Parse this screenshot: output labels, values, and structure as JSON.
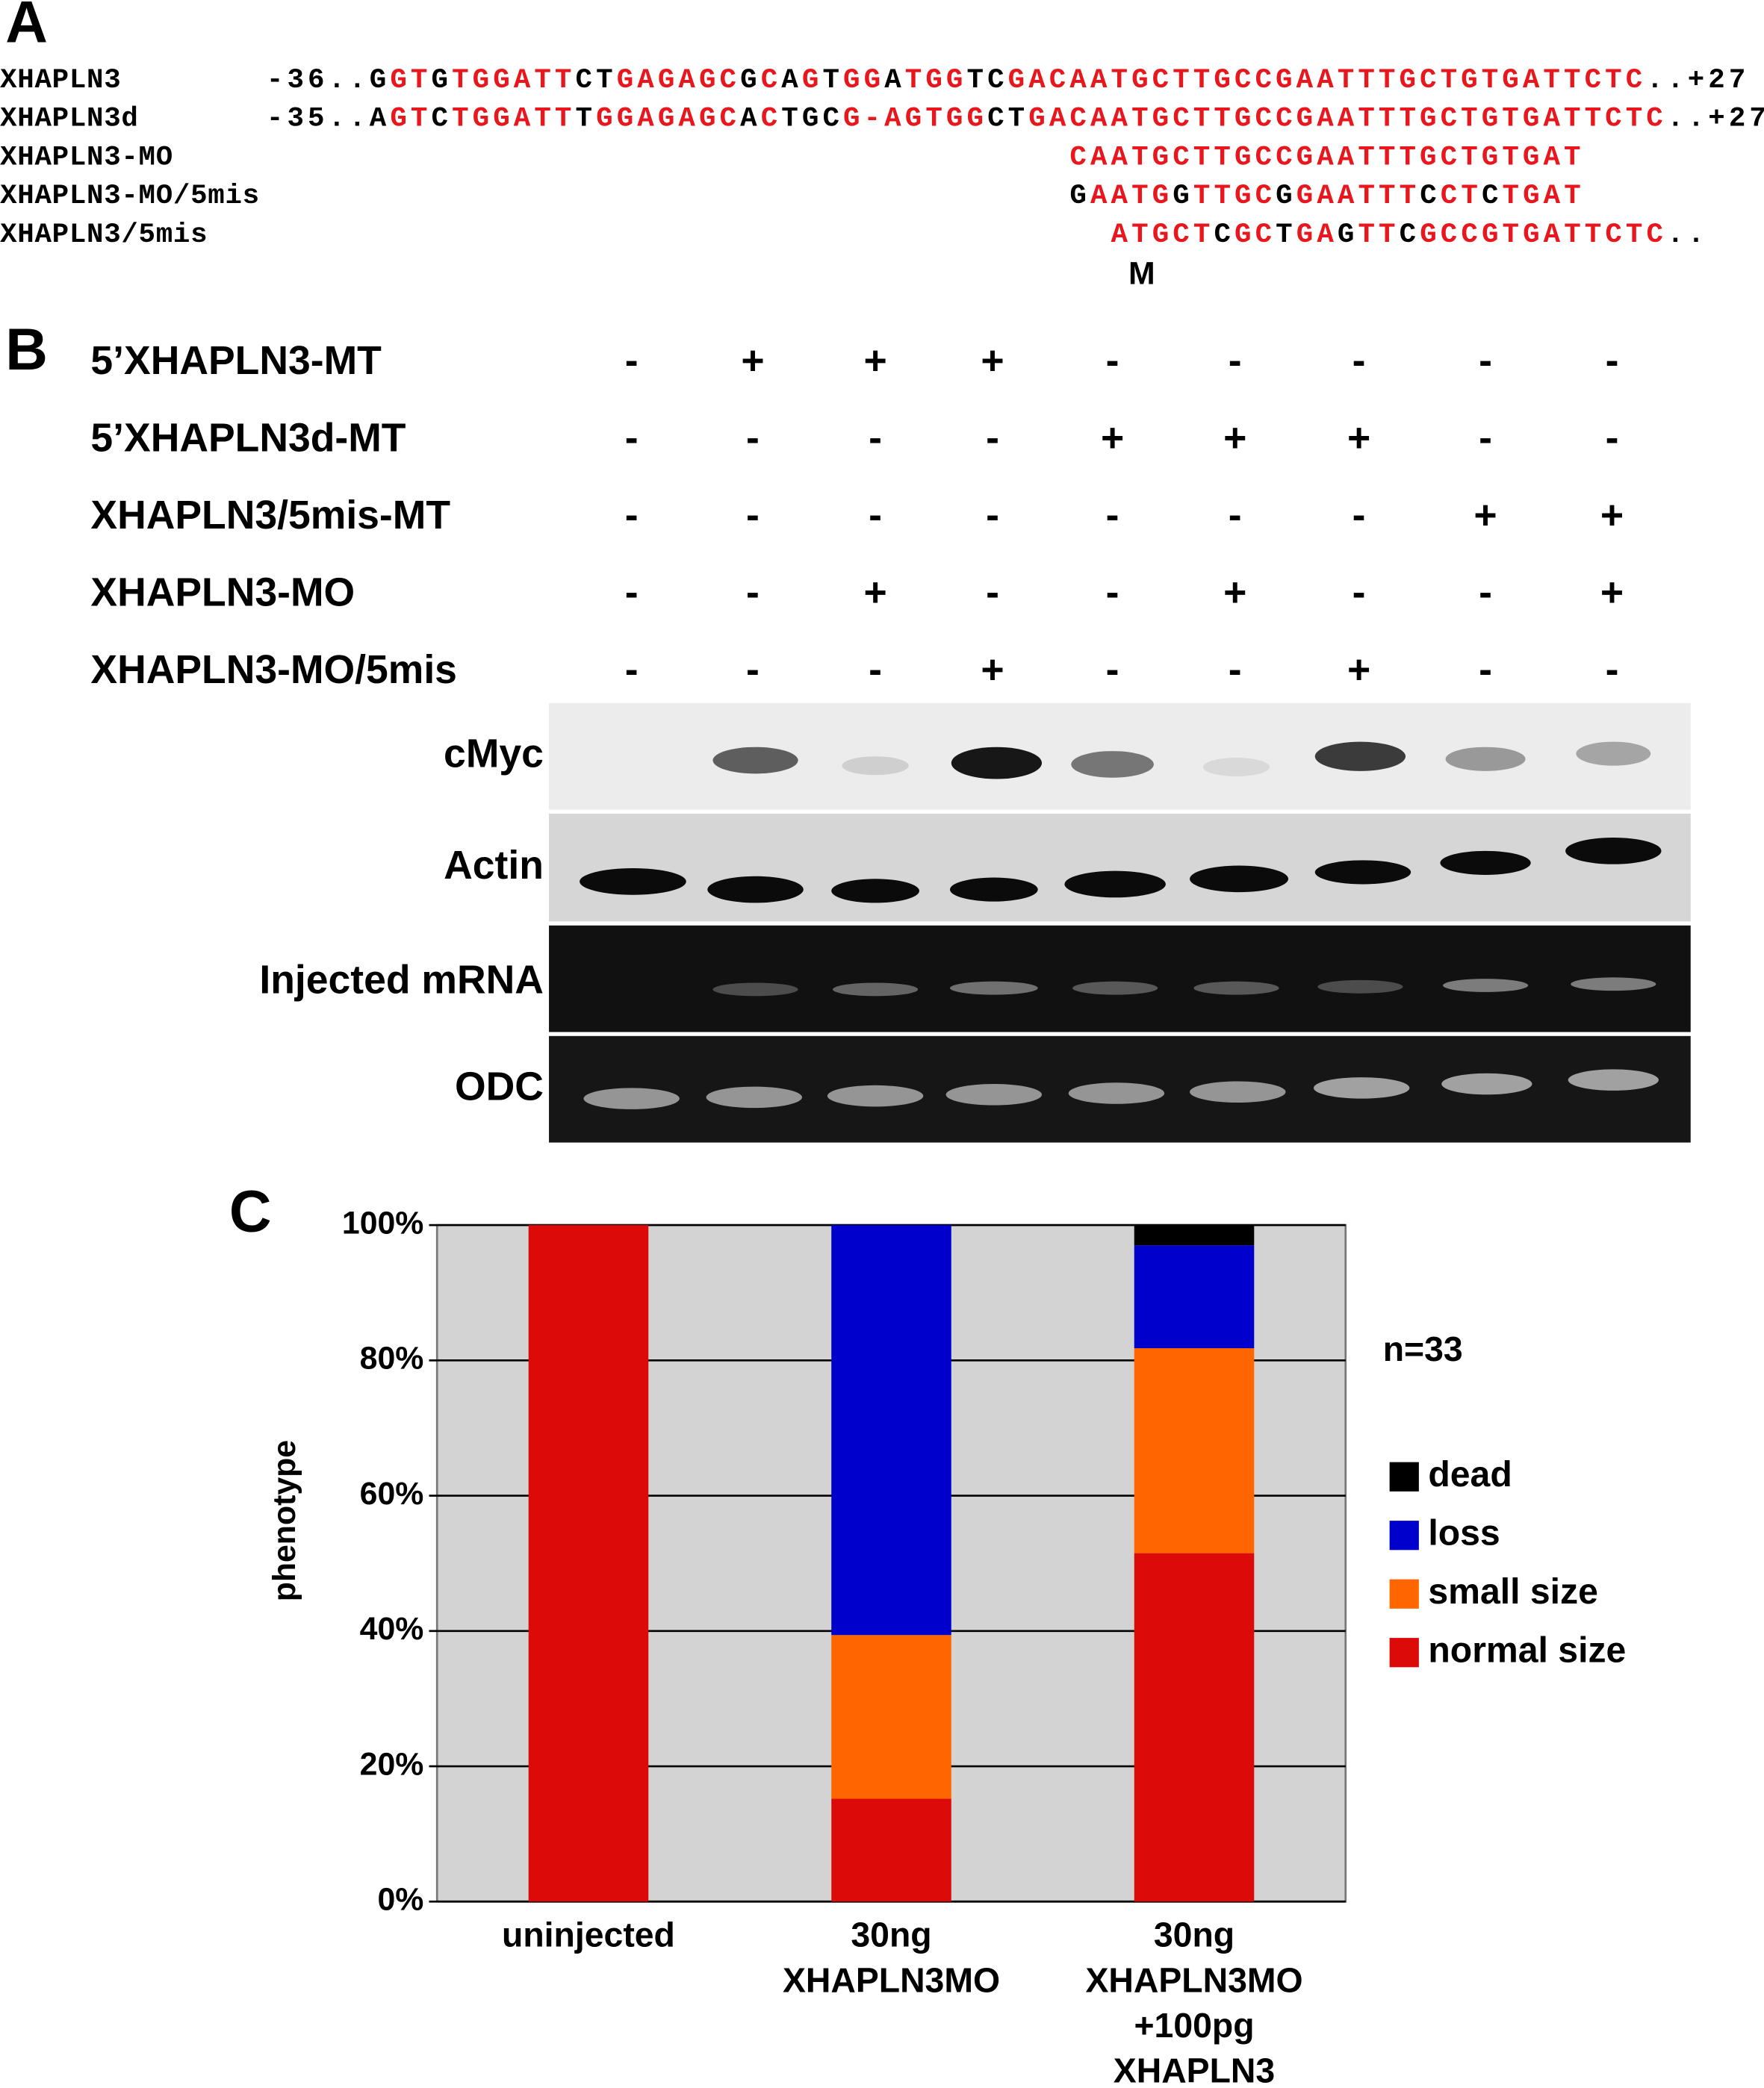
{
  "panel_a": {
    "label": "A",
    "rows": [
      {
        "name": "XHAPLN3",
        "runs": [
          {
            "text": "-36..G",
            "color": "#000000"
          },
          {
            "text": "GT",
            "color": "#e8161d"
          },
          {
            "text": "G",
            "color": "#000000"
          },
          {
            "text": "TGGATT",
            "color": "#e8161d"
          },
          {
            "text": "CT",
            "color": "#000000"
          },
          {
            "text": "GAGAGC",
            "color": "#e8161d"
          },
          {
            "text": "G",
            "color": "#000000"
          },
          {
            "text": "C",
            "color": "#e8161d"
          },
          {
            "text": "A",
            "color": "#000000"
          },
          {
            "text": "G",
            "color": "#e8161d"
          },
          {
            "text": "T",
            "color": "#000000"
          },
          {
            "text": "GG",
            "color": "#e8161d"
          },
          {
            "text": "A",
            "color": "#000000"
          },
          {
            "text": "TGG",
            "color": "#e8161d"
          },
          {
            "text": "TC",
            "color": "#000000"
          },
          {
            "text": "GACAATGCTTGCCGAATTTGCTGTGATTCTC",
            "color": "#e8161d"
          },
          {
            "text": "..+27",
            "color": "#000000"
          }
        ]
      },
      {
        "name": "XHAPLN3d",
        "runs": [
          {
            "text": "-35..A",
            "color": "#000000"
          },
          {
            "text": "GT",
            "color": "#e8161d"
          },
          {
            "text": "C",
            "color": "#000000"
          },
          {
            "text": "TGGATT",
            "color": "#e8161d"
          },
          {
            "text": "T",
            "color": "#000000"
          },
          {
            "text": "GGAGAGC",
            "color": "#e8161d"
          },
          {
            "text": "A",
            "color": "#000000"
          },
          {
            "text": "C",
            "color": "#e8161d"
          },
          {
            "text": "TGC",
            "color": "#000000"
          },
          {
            "text": "G-AGTGG",
            "color": "#e8161d"
          },
          {
            "text": "CT",
            "color": "#000000"
          },
          {
            "text": "GACAATGCTTGCCGAATTTGCTGTGATTCTC",
            "color": "#e8161d"
          },
          {
            "text": "..+27",
            "color": "#000000"
          }
        ]
      },
      {
        "name": "XHAPLN3-MO",
        "runs": [
          {
            "text": "CAATGCTTGCCGAATTTGCTGTGAT",
            "color": "#e8161d"
          }
        ]
      },
      {
        "name": "XHAPLN3-MO/5mis",
        "runs": [
          {
            "text": "G",
            "color": "#000000"
          },
          {
            "text": "AATG",
            "color": "#e8161d"
          },
          {
            "text": "G",
            "color": "#000000"
          },
          {
            "text": "TTGC",
            "color": "#e8161d"
          },
          {
            "text": "G",
            "color": "#000000"
          },
          {
            "text": "GAATTT",
            "color": "#e8161d"
          },
          {
            "text": "C",
            "color": "#000000"
          },
          {
            "text": "CT",
            "color": "#e8161d"
          },
          {
            "text": "C",
            "color": "#000000"
          },
          {
            "text": "TGAT",
            "color": "#e8161d"
          }
        ]
      },
      {
        "name": "XHAPLN3/5mis",
        "runs": [
          {
            "text": "ATGCT",
            "color": "#e8161d"
          },
          {
            "text": "C",
            "color": "#000000"
          },
          {
            "text": "GC",
            "color": "#e8161d"
          },
          {
            "text": "T",
            "color": "#000000"
          },
          {
            "text": "GA",
            "color": "#e8161d"
          },
          {
            "text": "G",
            "color": "#000000"
          },
          {
            "text": "TT",
            "color": "#e8161d"
          },
          {
            "text": "C",
            "color": "#000000"
          },
          {
            "text": "GCC",
            "color": "#e8161d"
          },
          {
            "text": "GTGATTCTC",
            "color": "#e8161d"
          },
          {
            "text": "..",
            "color": "#000000"
          }
        ]
      }
    ],
    "marker": "M"
  },
  "panel_b": {
    "label": "B",
    "rows": [
      {
        "label": "5’XHAPLN3-MT",
        "signs": [
          "-",
          "+",
          "+",
          "+",
          "-",
          "-",
          "-",
          "-",
          "-"
        ]
      },
      {
        "label": "5’XHAPLN3d-MT",
        "signs": [
          "-",
          "-",
          "-",
          "-",
          "+",
          "+",
          "+",
          "-",
          "-"
        ]
      },
      {
        "label": "XHAPLN3/5mis-MT",
        "signs": [
          "-",
          "-",
          "-",
          "-",
          "-",
          "-",
          "-",
          "+",
          "+"
        ]
      },
      {
        "label": "XHAPLN3-MO",
        "signs": [
          "-",
          "-",
          "+",
          "-",
          "-",
          "+",
          "-",
          "-",
          "+"
        ]
      },
      {
        "label": "XHAPLN3-MO/5mis",
        "signs": [
          "-",
          "-",
          "-",
          "+",
          "-",
          "-",
          "+",
          "-",
          "-"
        ]
      }
    ],
    "blots": [
      "cMyc",
      "Actin",
      "Injected mRNA",
      "ODC"
    ]
  },
  "panel_c_label": "C",
  "chart_data": {
    "type": "stacked-bar",
    "y_label": "phenotype",
    "annotation": "n=33",
    "categories": [
      [
        "uninjected"
      ],
      [
        "30ng",
        "XHAPLN3MO"
      ],
      [
        "30ng",
        "XHAPLN3MO",
        "+100pg",
        "XHAPLN3"
      ]
    ],
    "series": [
      {
        "name": "normal size",
        "color": "#dd0a0a",
        "values": [
          100,
          15.2,
          51.5
        ]
      },
      {
        "name": "small size",
        "color": "#ff6600",
        "values": [
          0,
          24.2,
          30.3
        ]
      },
      {
        "name": "loss",
        "color": "#0000cc",
        "values": [
          0,
          60.6,
          15.2
        ]
      },
      {
        "name": "dead",
        "color": "#000000",
        "values": [
          0,
          0,
          3
        ]
      }
    ],
    "ylim": [
      0,
      100
    ],
    "yticks": [
      {
        "value": 0,
        "label": "0%"
      },
      {
        "value": 20,
        "label": "20%"
      },
      {
        "value": 40,
        "label": "40%"
      },
      {
        "value": 60,
        "label": "60%"
      },
      {
        "value": 80,
        "label": "80%"
      },
      {
        "value": 100,
        "label": "100%"
      }
    ],
    "grid": true,
    "legend": "right"
  }
}
